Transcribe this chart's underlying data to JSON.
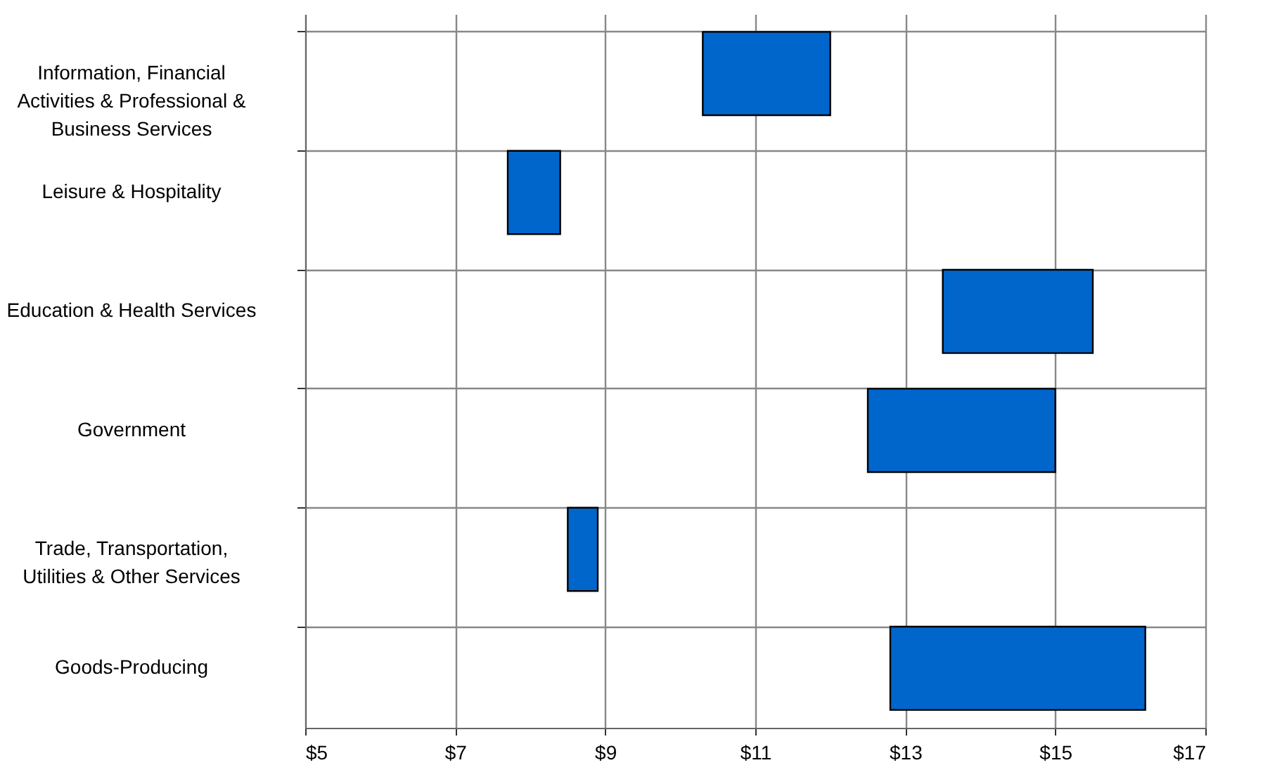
{
  "chart_data": {
    "type": "bar",
    "orientation": "horizontal",
    "categories": [
      "Information, Financial Activities & Professional & Business Services",
      "Leisure & Hospitality",
      "Education & Health Services",
      "Government",
      "Trade, Transportation, Utilities & Other Services",
      "Goods-Producing"
    ],
    "base": [
      10.3,
      7.7,
      13.5,
      12.5,
      8.5,
      12.8
    ],
    "values": [
      1.7,
      0.7,
      2.0,
      2.5,
      0.4,
      3.4
    ],
    "color": "#0066cc",
    "xlim": [
      5,
      17
    ],
    "xticks": [
      {
        "value": 5,
        "label": "$5"
      },
      {
        "value": 7,
        "label": "$7"
      },
      {
        "value": 9,
        "label": "$9"
      },
      {
        "value": 11,
        "label": "$11"
      },
      {
        "value": 13,
        "label": "$13"
      },
      {
        "value": 15,
        "label": "$15"
      },
      {
        "value": 17,
        "label": "$17"
      }
    ],
    "grid": true
  }
}
